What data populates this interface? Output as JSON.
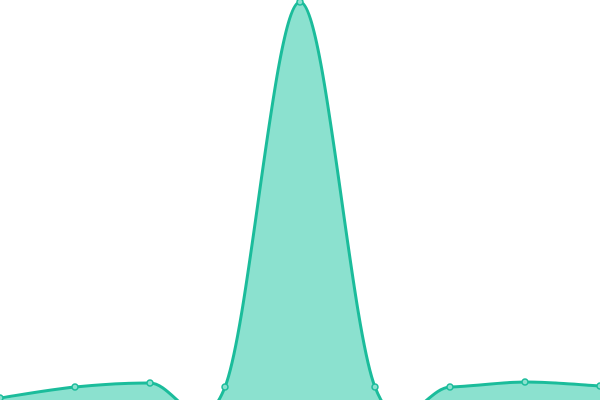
{
  "chart_data": {
    "type": "area",
    "title": "",
    "xlabel": "",
    "ylabel": "",
    "x": [
      0,
      1,
      2,
      3,
      4,
      5,
      6,
      7,
      8
    ],
    "values": [
      2,
      13,
      17,
      13,
      398,
      13,
      13,
      18,
      14
    ],
    "ylim": [
      0,
      400
    ],
    "grid": false,
    "legend": "none",
    "colors": {
      "line": "#1bbc9b",
      "fill": "#8be1cf",
      "point_fill": "#8be1cf"
    }
  }
}
